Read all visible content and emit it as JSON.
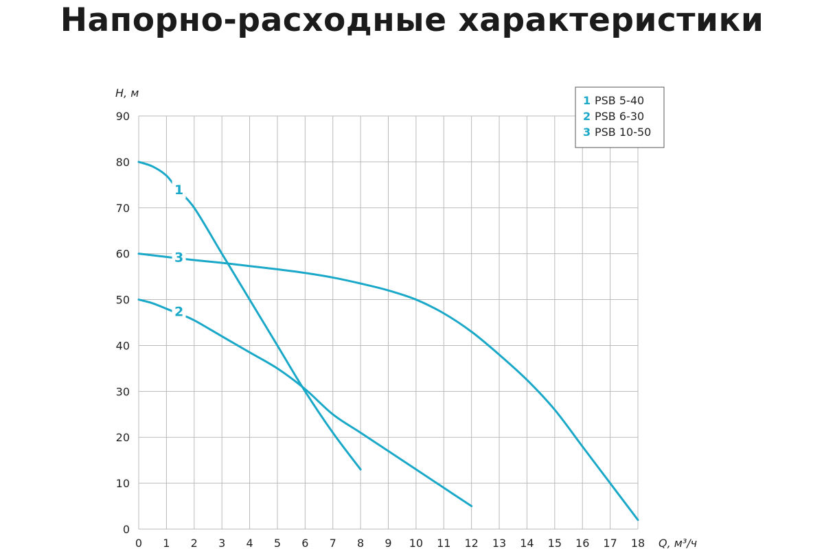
{
  "chart_data": {
    "type": "line",
    "title": "Напорно-расходные характеристики",
    "ylabel": "H, м",
    "xlabel": "Q, м³/ч",
    "xlim": [
      0,
      18
    ],
    "ylim": [
      0,
      90
    ],
    "xticks": [
      0,
      1,
      2,
      3,
      4,
      5,
      6,
      7,
      8,
      9,
      10,
      11,
      12,
      13,
      14,
      15,
      16,
      17,
      18
    ],
    "yticks": [
      0,
      10,
      20,
      30,
      40,
      50,
      60,
      70,
      80,
      90
    ],
    "grid": true,
    "legend_position": "top-right",
    "series_color": "#1aa8c9",
    "series": [
      {
        "id": "1",
        "name": "PSB 5-40",
        "x": [
          0,
          0.5,
          1,
          1.4,
          2,
          3,
          4,
          5,
          6,
          7,
          8
        ],
        "y": [
          80,
          79,
          77,
          74,
          70,
          60,
          50,
          40,
          30,
          21,
          13
        ],
        "label_pos": [
          1.45,
          74
        ]
      },
      {
        "id": "2",
        "name": "PSB 6-30",
        "x": [
          0,
          0.5,
          1,
          1.5,
          2,
          3,
          4,
          5,
          6,
          7,
          8,
          9,
          10,
          11,
          12
        ],
        "y": [
          50,
          49.2,
          48,
          46.8,
          45.5,
          42,
          38.5,
          35,
          30.5,
          25,
          21,
          17,
          13,
          9,
          5
        ],
        "label_pos": [
          1.45,
          47.5
        ]
      },
      {
        "id": "3",
        "name": "PSB 10-50",
        "x": [
          0,
          1,
          2,
          3,
          4,
          5,
          6,
          7,
          8,
          9,
          10,
          11,
          12,
          13,
          14,
          15,
          16,
          17,
          18
        ],
        "y": [
          60,
          59.3,
          58.6,
          58,
          57.3,
          56.6,
          55.8,
          54.8,
          53.5,
          52,
          50,
          47,
          43,
          38,
          32.5,
          26,
          18,
          10,
          2
        ],
        "label_pos": [
          1.45,
          59.3
        ]
      }
    ]
  }
}
